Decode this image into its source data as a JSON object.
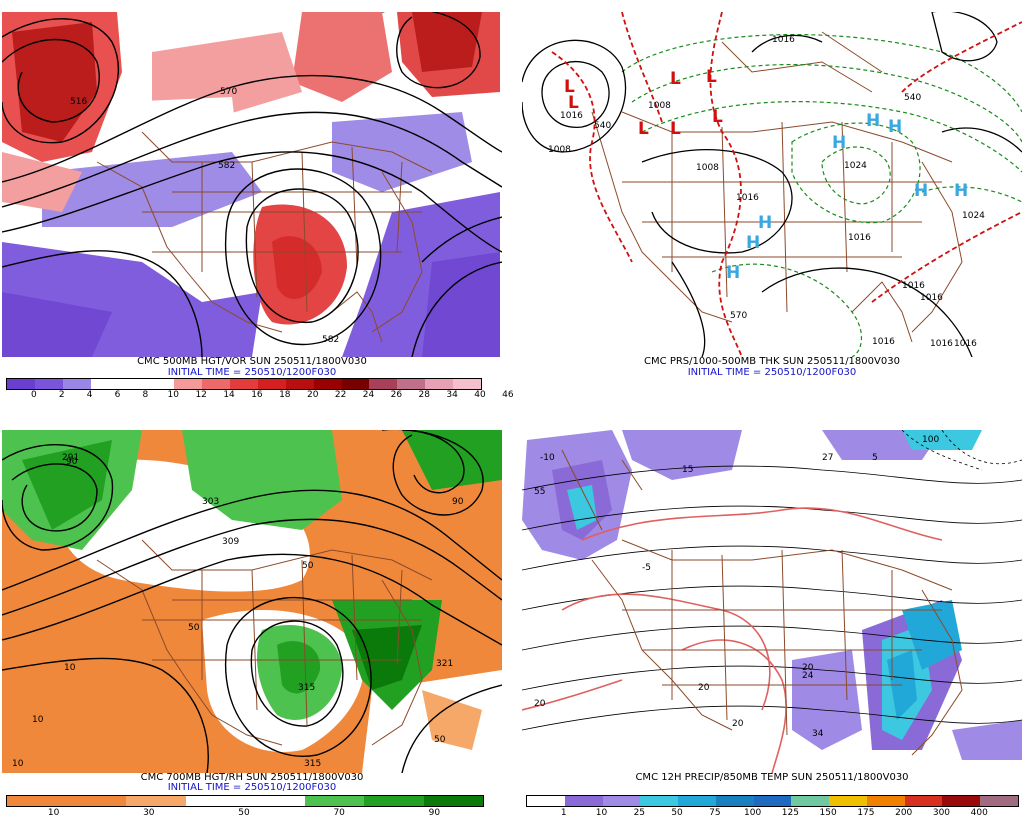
{
  "panels": {
    "p500": {
      "title": "CMC 500MB HGT/VOR SUN 250511/1800V030",
      "subtitle": "INITIAL TIME = 250510/1200F030",
      "colorbar": {
        "colors": [
          "#6a3fd0",
          "#7a55dc",
          "#9a86e6",
          "#ffffff",
          "#ffffff",
          "#ffffff",
          "#f49a9a",
          "#ec6a6a",
          "#e23c3c",
          "#d42020",
          "#b81010",
          "#990000",
          "#7a0000",
          "#a8405a",
          "#c0708a",
          "#e8a0b4",
          "#f5c0cc"
        ],
        "labels": [
          "0",
          "2",
          "4",
          "6",
          "8",
          "10",
          "12",
          "14",
          "16",
          "18",
          "20",
          "22",
          "24",
          "26",
          "28",
          "34",
          "40",
          "46"
        ]
      },
      "contour_labels": [
        "516",
        "570",
        "582",
        "582"
      ]
    },
    "pprs": {
      "title": "CMC PRS/1000-500MB THK SUN 250511/1800V030",
      "subtitle": "INITIAL TIME = 250510/1200F030",
      "isobar_labels": [
        "1016",
        "1008",
        "1008",
        "1016",
        "1008",
        "1016",
        "1024",
        "1024",
        "1016",
        "1016",
        "1016",
        "1016",
        "1016",
        "1016"
      ],
      "thickness_labels": [
        "540",
        "570",
        "540"
      ],
      "lows": [
        "L",
        "L",
        "L",
        "L",
        "L",
        "L",
        "L"
      ],
      "highs": [
        "H",
        "H",
        "H",
        "H",
        "H",
        "H",
        "H",
        "H"
      ]
    },
    "p700": {
      "title": "CMC 700MB HGT/RH SUN 250511/1800V030",
      "subtitle": "INITIAL TIME = 250510/1200F030",
      "colorbar": {
        "colors": [
          "#f0883c",
          "#f0883c",
          "#f5a868",
          "#ffffff",
          "#ffffff",
          "#4ec24e",
          "#22a022",
          "#0a7a0a"
        ],
        "labels": [
          "10",
          "30",
          "50",
          "70",
          "90"
        ]
      },
      "contour_labels": [
        "291",
        "303",
        "309",
        "315",
        "315",
        "321",
        "50",
        "50",
        "50",
        "10",
        "10",
        "10",
        "90",
        "90"
      ]
    },
    "pprecip": {
      "title": "CMC 12H PRECIP/850MB TEMP SUN 250511/1800V030",
      "colorbar": {
        "colors": [
          "#ffffff",
          "#8a6ad6",
          "#9f8ae6",
          "#3cc8e0",
          "#22a8d8",
          "#1880c0",
          "#1e6ac0",
          "#70c8a0",
          "#f0c000",
          "#f08000",
          "#d83020",
          "#9a0a0a",
          "#a06a80"
        ],
        "labels": [
          "1",
          "10",
          "25",
          "50",
          "75",
          "100",
          "125",
          "150",
          "175",
          "200",
          "300",
          "400"
        ]
      },
      "contour_labels": [
        "-10",
        "20",
        "15",
        "5",
        "20",
        "20",
        "20",
        "24",
        "34",
        "100",
        "27",
        "-5",
        "55"
      ]
    }
  },
  "colors": {
    "contour": "#000000",
    "border": "#8b4a2b",
    "isobar_green": "#1a8c1a",
    "thickness_red": "#d01010",
    "low_red": "#d01010",
    "high_blue": "#3aa8e0",
    "title_blue": "#1414c8"
  }
}
